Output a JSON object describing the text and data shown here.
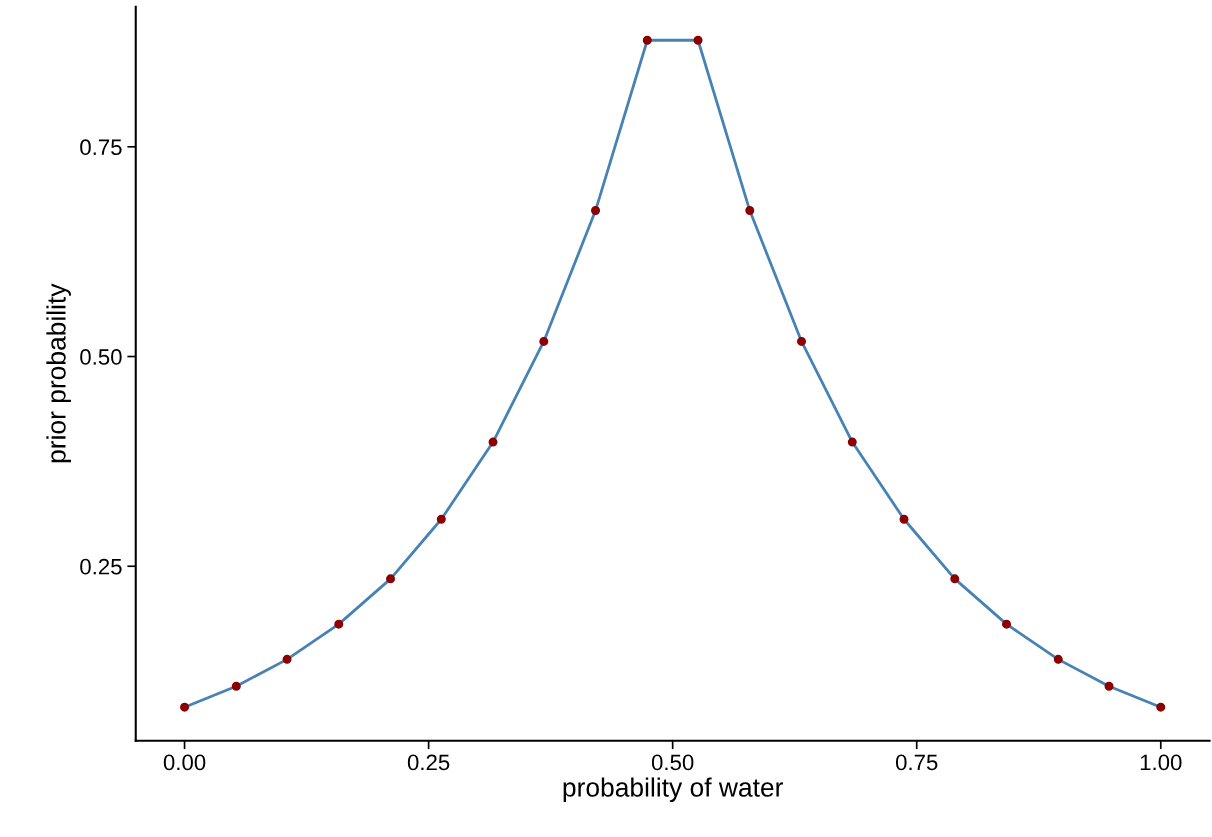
{
  "chart_data": {
    "type": "line",
    "xlabel": "probability of water",
    "ylabel": "prior probability",
    "x": [
      0,
      0.053,
      0.105,
      0.158,
      0.211,
      0.263,
      0.316,
      0.368,
      0.421,
      0.474,
      0.526,
      0.579,
      0.632,
      0.684,
      0.737,
      0.789,
      0.842,
      0.895,
      0.947,
      1
    ],
    "series": [
      {
        "color": "#4682b4",
        "marker": "none",
        "values": [
          0.082,
          0.107,
          0.139,
          0.181,
          0.235,
          0.306,
          0.398,
          0.518,
          0.674,
          0.877,
          0.877,
          0.674,
          0.518,
          0.398,
          0.306,
          0.235,
          0.181,
          0.139,
          0.107,
          0.082
        ]
      },
      {
        "type": "scatter",
        "color": "#8b0000",
        "marker": "circle",
        "values": [
          0.082,
          0.107,
          0.139,
          0.181,
          0.235,
          0.306,
          0.398,
          0.518,
          0.674,
          0.877,
          0.877,
          0.674,
          0.518,
          0.398,
          0.306,
          0.235,
          0.181,
          0.139,
          0.107,
          0.082
        ]
      }
    ],
    "xlim": [
      -0.05,
      1.05
    ],
    "xticks": [
      {
        "value": 0,
        "label": "0.00"
      },
      0.25,
      {
        "value": 0.5,
        "label": "0.50"
      },
      0.75,
      {
        "value": 1,
        "label": "1.00"
      }
    ],
    "ylim": [
      0.042,
      0.917
    ],
    "yticks": [
      0.25,
      {
        "value": 0.5,
        "label": "0.50"
      },
      0.75
    ],
    "grid": false,
    "legend": false
  }
}
